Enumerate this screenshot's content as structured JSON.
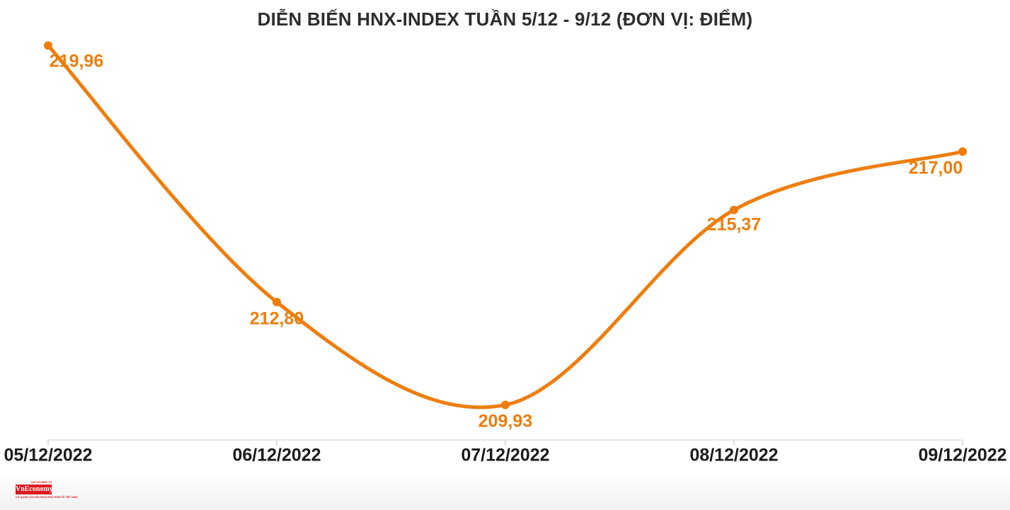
{
  "title": "DIỄN BIẾN HNX-INDEX TUẦN 5/12 - 9/12 (ĐƠN VỊ: ĐIỂM)",
  "chart_data": {
    "type": "line",
    "title": "DIỄN BIẾN HNX-INDEX TUẦN 5/12 - 9/12 (ĐƠN VỊ: ĐIỂM)",
    "categories": [
      "05/12/2022",
      "06/12/2022",
      "07/12/2022",
      "08/12/2022",
      "09/12/2022"
    ],
    "values": [
      219.96,
      212.8,
      209.93,
      215.37,
      217.0
    ],
    "point_labels": [
      "219,96",
      "212,80",
      "209,93",
      "215,37",
      "217,00"
    ],
    "xlabel": "",
    "ylabel": "",
    "ylim": [
      208.95,
      221.23
    ],
    "grid": false,
    "legend": false,
    "line_color": "#ee7d0d",
    "point_color": "#ee7d0d",
    "label_color": "#ee7d0d",
    "axis_color": "#e8e8e8",
    "tick_color": "#e0e0e0",
    "axis_text_color": "#1b1b1b"
  },
  "logo": {
    "name": "VnEconomy",
    "tagline_top": "TẠP CHÍ ĐIỆN TỬ",
    "tagline_bottom": "CƠ QUAN CỦA HỘI KHOA HỌC KINH TẾ VIỆT NAM",
    "brand_color": "#e11b22"
  },
  "colors": {
    "background": "#ffffff",
    "title_text": "#2d2d2d",
    "accent_orange": "#ee7d0d",
    "brand_red": "#e11b22"
  }
}
